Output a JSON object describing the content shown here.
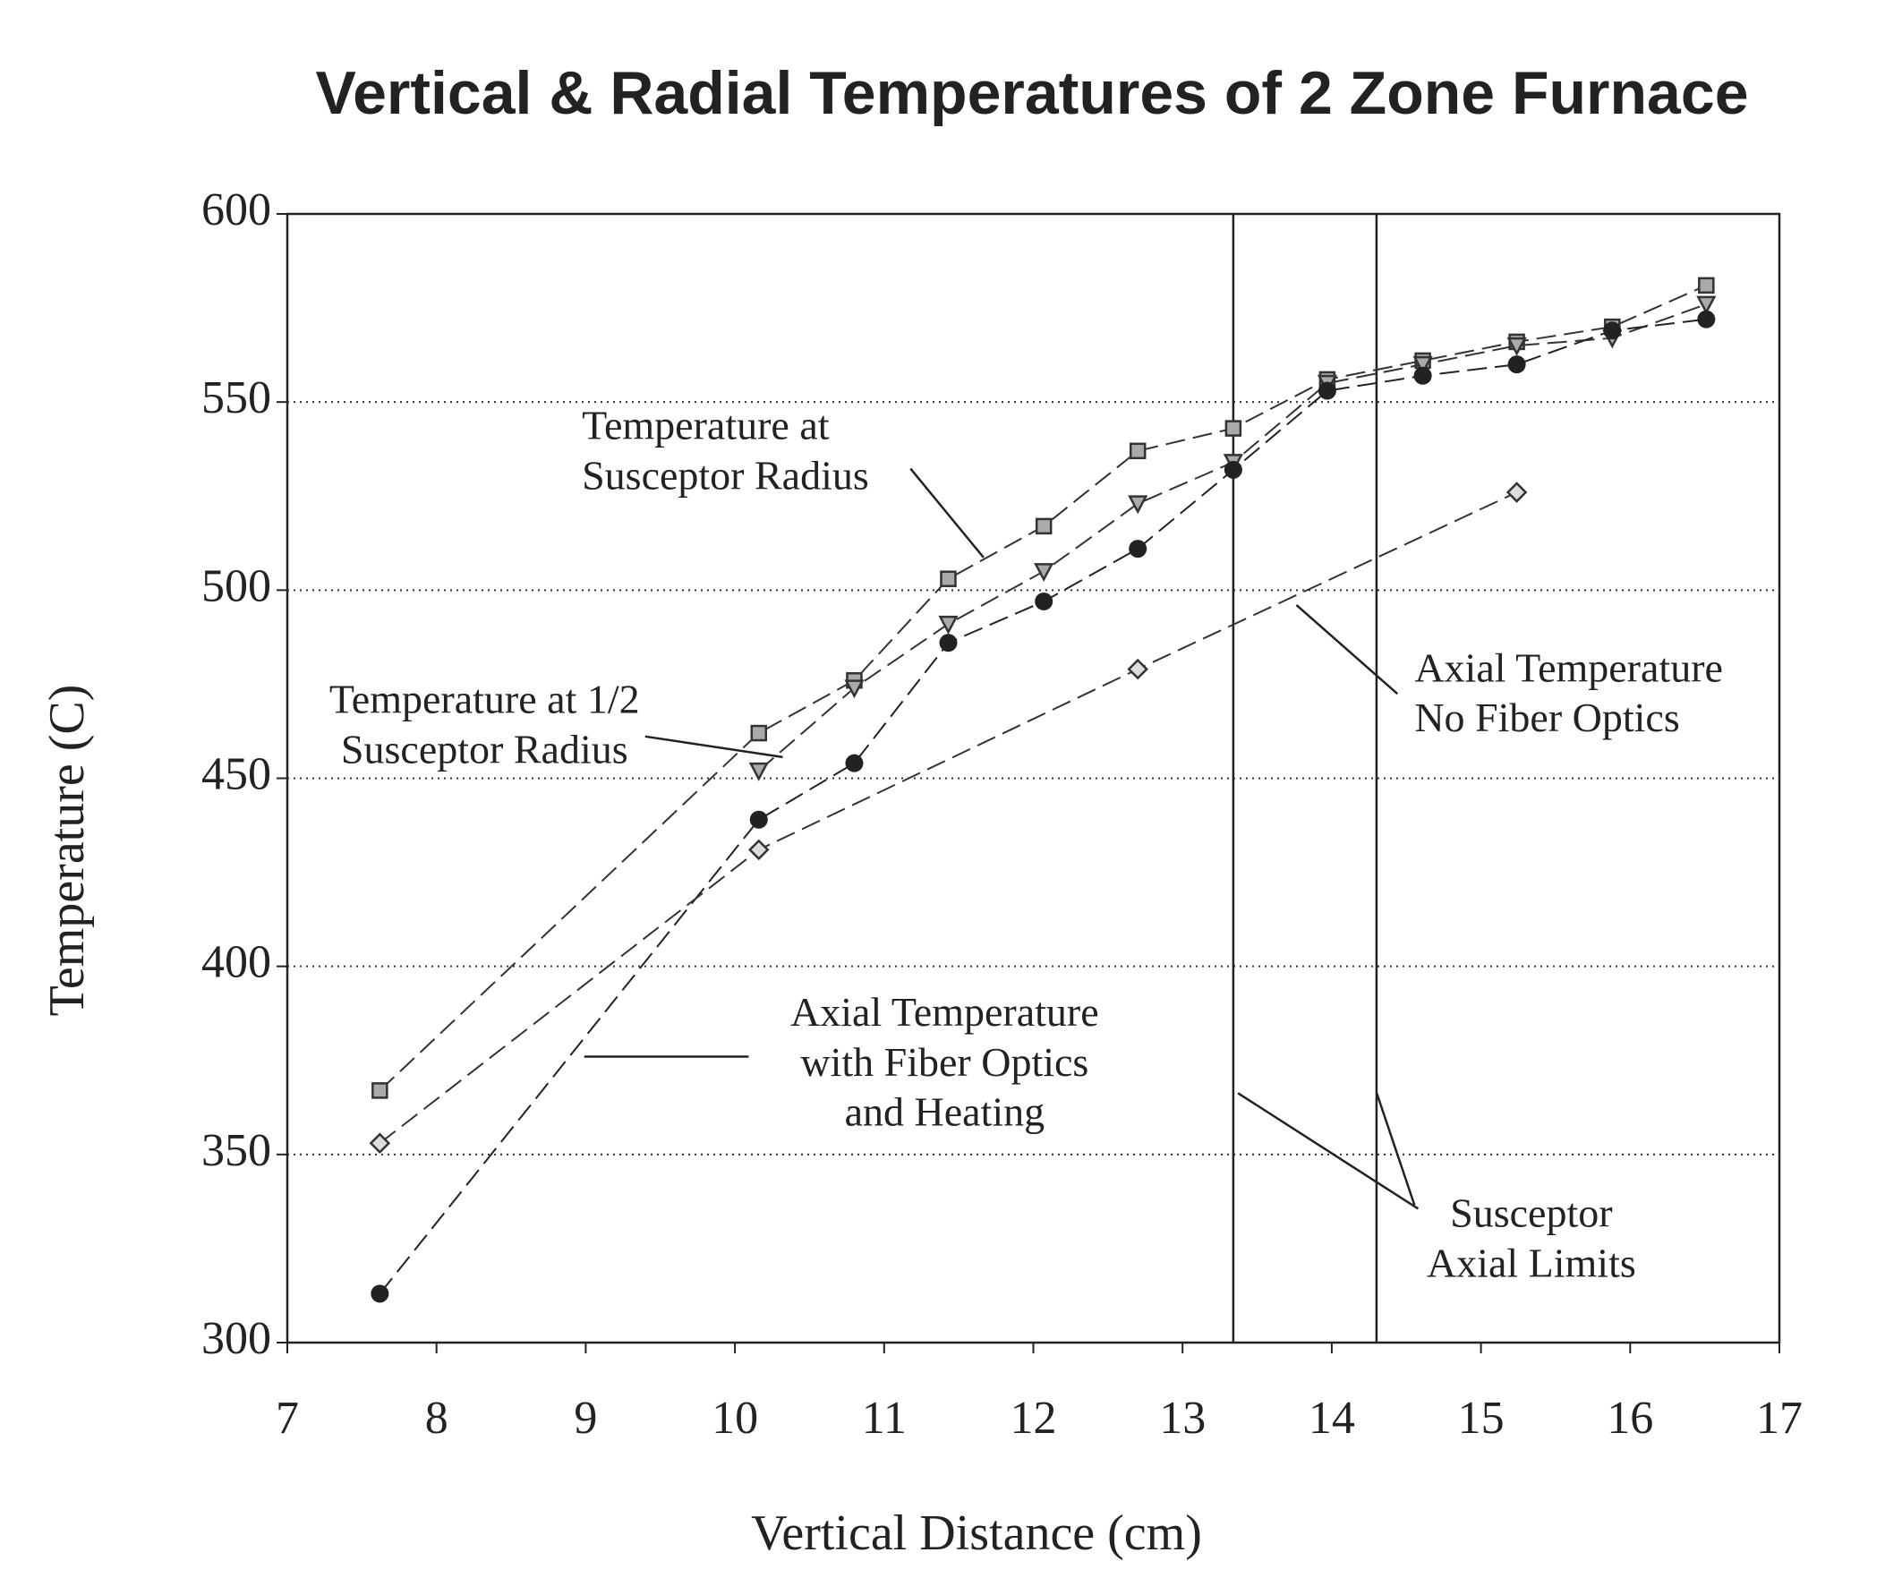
{
  "chart_data": {
    "type": "line",
    "title": "Vertical & Radial Temperatures of 2 Zone Furnace",
    "x_label": "Vertical Distance (cm)",
    "y_label": "Temperature (C)",
    "xlim": [
      7,
      17
    ],
    "xticks": [
      7,
      8,
      9,
      10,
      11,
      12,
      13,
      14,
      15,
      16,
      17
    ],
    "ylim": [
      300,
      600
    ],
    "yticks": [
      300,
      350,
      400,
      450,
      500,
      550,
      600
    ],
    "grid": true,
    "vlines": [
      13.34,
      14.3
    ],
    "series": [
      {
        "marker": "square",
        "color": "#333333",
        "x": [
          7.62,
          10.16,
          10.8,
          11.43,
          12.07,
          12.7,
          13.34,
          13.97,
          14.61,
          15.24,
          15.88,
          16.51
        ],
        "values": [
          367,
          462,
          476,
          503,
          517,
          537,
          543,
          556,
          561,
          566,
          570,
          581
        ]
      },
      {
        "marker": "triangle",
        "color": "#333333",
        "x": [
          10.16,
          10.8,
          11.43,
          12.07,
          12.7,
          13.34,
          13.97,
          14.61,
          15.24,
          15.88,
          16.51
        ],
        "values": [
          452,
          474,
          491,
          505,
          523,
          534,
          555,
          560,
          565,
          567,
          576
        ]
      },
      {
        "marker": "circle",
        "color": "#222222",
        "x": [
          7.62,
          10.16,
          10.8,
          11.43,
          12.07,
          12.7,
          13.34,
          13.97,
          14.61,
          15.24,
          15.88,
          16.51
        ],
        "values": [
          313,
          439,
          454,
          486,
          497,
          511,
          532,
          553,
          557,
          560,
          569,
          572
        ]
      },
      {
        "marker": "diamond",
        "color": "#333333",
        "x": [
          7.62,
          10.16,
          12.7,
          15.24
        ],
        "values": [
          353,
          431,
          479,
          526
        ]
      }
    ],
    "annotations": [
      [
        "Temperature at",
        "Susceptor Radius"
      ],
      [
        "Temperature at 1/2",
        "Susceptor Radius"
      ],
      [
        "Axial Temperature",
        "with Fiber Optics",
        "and Heating"
      ],
      [
        "Axial Temperature",
        "No Fiber Optics"
      ],
      [
        "Susceptor",
        "Axial Limits"
      ]
    ]
  }
}
